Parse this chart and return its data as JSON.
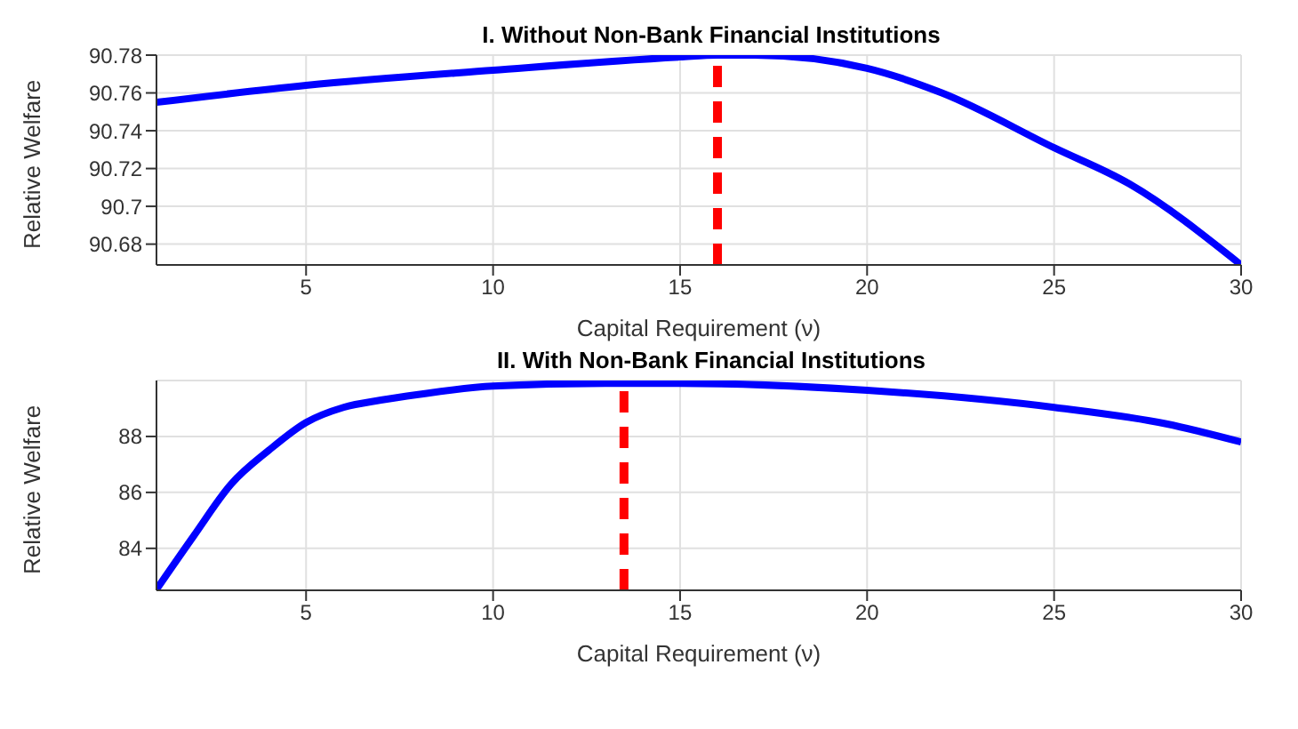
{
  "chart_data": [
    {
      "type": "line",
      "title": "I. Without Non-Bank Financial Institutions",
      "xlabel": "Capital Requirement (ν)",
      "ylabel": "Relative Welfare",
      "x": [
        1,
        5,
        10,
        15,
        16,
        17,
        20,
        22,
        25,
        27,
        30
      ],
      "series": [
        {
          "color": "#0000ff",
          "values": [
            90.755,
            90.764,
            90.772,
            90.779,
            90.78,
            90.78,
            90.773,
            90.76,
            90.731,
            90.712,
            90.669
          ]
        }
      ],
      "xlim": [
        1,
        30
      ],
      "xticks": [
        5,
        10,
        15,
        20,
        25,
        30
      ],
      "ylim": [
        90.669,
        90.78
      ],
      "yticks": [
        90.68,
        90.7,
        90.72,
        90.74,
        90.76,
        90.78
      ],
      "grid": true,
      "marker": "none",
      "line_style": "solid",
      "ref_lines": [
        {
          "axis": "x",
          "value": 16,
          "color": "#ff0000",
          "line_style": "dashed"
        }
      ]
    },
    {
      "type": "line",
      "title": "II. With Non-Bank Financial Institutions",
      "xlabel": "Capital Requirement (ν)",
      "ylabel": "Relative Welfare",
      "x": [
        1,
        2,
        3,
        4,
        5,
        6,
        7,
        8,
        10,
        13,
        15,
        20,
        25,
        28,
        30
      ],
      "series": [
        {
          "color": "#0000ff",
          "values": [
            82.53,
            84.45,
            86.3,
            87.5,
            88.5,
            89.04,
            89.3,
            89.5,
            89.8,
            89.9,
            89.9,
            89.65,
            89.04,
            88.45,
            87.8
          ]
        }
      ],
      "xlim": [
        1,
        30
      ],
      "xticks": [
        5,
        10,
        15,
        20,
        25,
        30
      ],
      "ylim": [
        82.5,
        90
      ],
      "yticks": [
        84,
        86,
        88
      ],
      "grid": true,
      "marker": "none",
      "line_style": "solid",
      "ref_lines": [
        {
          "axis": "x",
          "value": 13.5,
          "color": "#ff0000",
          "line_style": "dashed"
        }
      ]
    }
  ]
}
